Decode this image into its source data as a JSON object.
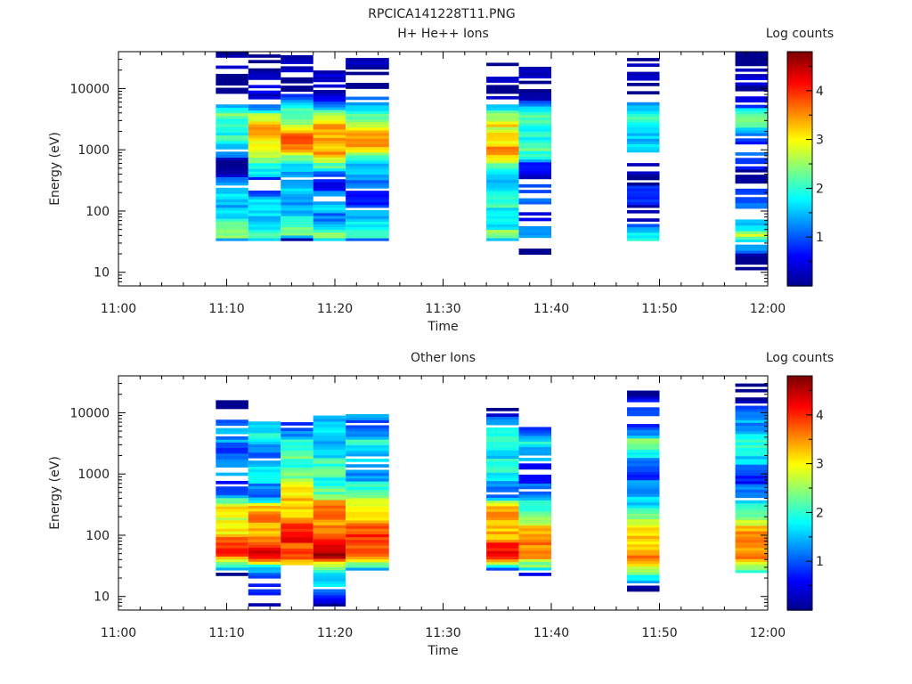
{
  "title": "RPCICA141228T11.PNG",
  "colormap": [
    "#00008f",
    "#0000ff",
    "#0080ff",
    "#00ffff",
    "#80ff80",
    "#ffff00",
    "#ff8000",
    "#ff0000",
    "#800000"
  ],
  "chart_data": [
    {
      "type": "heatmap",
      "title": "H+ He++ Ions",
      "xlabel": "Time",
      "ylabel": "Energy (eV)",
      "xlim": [
        "11:00",
        "12:00"
      ],
      "xticks": [
        "11:00",
        "11:10",
        "11:20",
        "11:30",
        "11:40",
        "11:50",
        "12:00"
      ],
      "ylim": [
        6,
        40000
      ],
      "yscale": "log",
      "yticks": [
        "10",
        "100",
        "1000",
        "10000"
      ],
      "colorbar": {
        "label": "Log counts",
        "range": [
          0,
          4.8
        ],
        "ticks": [
          "1",
          "2",
          "3",
          "4"
        ]
      },
      "columns": [
        {
          "start": "11:09",
          "end": "11:12",
          "emin": 33,
          "emax": 40000,
          "profile": [
            [
              33,
              1.2
            ],
            [
              40,
              2.6
            ],
            [
              60,
              2.3
            ],
            [
              150,
              1.8
            ],
            [
              300,
              1.2
            ],
            [
              600,
              0.4
            ],
            [
              1000,
              1.4
            ],
            [
              2000,
              2.3
            ],
            [
              3500,
              2.6
            ],
            [
              6000,
              1.2
            ],
            [
              10000,
              0.3
            ],
            [
              40000,
              0.1
            ]
          ]
        },
        {
          "start": "11:12",
          "end": "11:15",
          "emin": 33,
          "emax": 40000,
          "profile": [
            [
              33,
              1.4
            ],
            [
              40,
              2.8
            ],
            [
              60,
              2.0
            ],
            [
              150,
              1.6
            ],
            [
              300,
              1.3
            ],
            [
              600,
              2.0
            ],
            [
              1000,
              3.5
            ],
            [
              2000,
              3.6
            ],
            [
              3500,
              2.8
            ],
            [
              6000,
              1.3
            ],
            [
              10000,
              0.3
            ],
            [
              40000,
              0.1
            ]
          ]
        },
        {
          "start": "11:15",
          "end": "11:18",
          "emin": 33,
          "emax": 35000,
          "profile": [
            [
              33,
              0.2
            ],
            [
              40,
              2.6
            ],
            [
              60,
              2.0
            ],
            [
              150,
              1.8
            ],
            [
              300,
              1.3
            ],
            [
              600,
              2.3
            ],
            [
              1000,
              3.7
            ],
            [
              2000,
              3.8
            ],
            [
              3500,
              2.6
            ],
            [
              6000,
              1.4
            ],
            [
              10000,
              0.3
            ],
            [
              35000,
              0.1
            ]
          ]
        },
        {
          "start": "11:18",
          "end": "11:21",
          "emin": 33,
          "emax": 30000,
          "profile": [
            [
              33,
              1.4
            ],
            [
              40,
              2.8
            ],
            [
              60,
              1.8
            ],
            [
              150,
              1.5
            ],
            [
              300,
              1.1
            ],
            [
              600,
              2.3
            ],
            [
              1000,
              3.8
            ],
            [
              2000,
              3.9
            ],
            [
              3500,
              2.9
            ],
            [
              6000,
              1.4
            ],
            [
              10000,
              0.3
            ],
            [
              30000,
              0.1
            ]
          ]
        },
        {
          "start": "11:21",
          "end": "11:25",
          "emin": 33,
          "emax": 35000,
          "profile": [
            [
              33,
              1.3
            ],
            [
              40,
              2.7
            ],
            [
              60,
              1.7
            ],
            [
              150,
              1.3
            ],
            [
              300,
              1.0
            ],
            [
              600,
              2.0
            ],
            [
              1000,
              3.4
            ],
            [
              2000,
              3.5
            ],
            [
              3500,
              2.8
            ],
            [
              6000,
              1.3
            ],
            [
              10000,
              0.3
            ],
            [
              35000,
              0.1
            ]
          ]
        },
        {
          "start": "11:34",
          "end": "11:37",
          "emin": 33,
          "emax": 40000,
          "profile": [
            [
              33,
              1.4
            ],
            [
              40,
              2.7
            ],
            [
              60,
              2.2
            ],
            [
              150,
              2.0
            ],
            [
              300,
              1.8
            ],
            [
              600,
              2.4
            ],
            [
              1000,
              3.6
            ],
            [
              2000,
              3.5
            ],
            [
              3500,
              2.6
            ],
            [
              6000,
              1.2
            ],
            [
              10000,
              0.3
            ],
            [
              40000,
              0.1
            ]
          ]
        },
        {
          "start": "11:37",
          "end": "11:40",
          "emin": 16,
          "emax": 28000,
          "profile": [
            [
              16,
              0.1
            ],
            [
              33,
              0.6
            ],
            [
              40,
              1.4
            ],
            [
              60,
              1.0
            ],
            [
              150,
              1.0
            ],
            [
              300,
              0.7
            ],
            [
              600,
              1.3
            ],
            [
              1000,
              2.2
            ],
            [
              2000,
              2.4
            ],
            [
              3500,
              2.2
            ],
            [
              6000,
              1.0
            ],
            [
              10000,
              0.3
            ],
            [
              28000,
              0.1
            ]
          ]
        },
        {
          "start": "11:47",
          "end": "11:50",
          "emin": 33,
          "emax": 35000,
          "profile": [
            [
              33,
              2.3
            ],
            [
              40,
              1.8
            ],
            [
              60,
              1.0
            ],
            [
              150,
              0.7
            ],
            [
              300,
              0.6
            ],
            [
              600,
              0.9
            ],
            [
              1000,
              1.6
            ],
            [
              2000,
              2.2
            ],
            [
              3500,
              2.3
            ],
            [
              6000,
              1.2
            ],
            [
              10000,
              0.3
            ],
            [
              35000,
              0.1
            ]
          ]
        },
        {
          "start": "11:57",
          "end": "12:00",
          "emin": 11,
          "emax": 40000,
          "profile": [
            [
              11,
              0.1
            ],
            [
              33,
              1.6
            ],
            [
              40,
              2.9
            ],
            [
              60,
              2.0
            ],
            [
              150,
              0.8
            ],
            [
              300,
              0.6
            ],
            [
              600,
              0.7
            ],
            [
              1000,
              1.0
            ],
            [
              2000,
              1.8
            ],
            [
              3500,
              2.4
            ],
            [
              6000,
              1.2
            ],
            [
              10000,
              0.3
            ],
            [
              40000,
              0.1
            ]
          ]
        }
      ]
    },
    {
      "type": "heatmap",
      "title": "Other Ions",
      "xlabel": "Time",
      "ylabel": "Energy (eV)",
      "xlim": [
        "11:00",
        "12:00"
      ],
      "xticks": [
        "11:00",
        "11:10",
        "11:20",
        "11:30",
        "11:40",
        "11:50",
        "12:00"
      ],
      "ylim": [
        6,
        40000
      ],
      "yscale": "log",
      "yticks": [
        "10",
        "100",
        "1000",
        "10000"
      ],
      "colorbar": {
        "label": "Log counts",
        "range": [
          0,
          4.8
        ],
        "ticks": [
          "1",
          "2",
          "3",
          "4"
        ]
      },
      "columns": [
        {
          "start": "11:09",
          "end": "11:12",
          "emin": 22,
          "emax": 16000,
          "profile": [
            [
              22,
              0.2
            ],
            [
              30,
              2.2
            ],
            [
              45,
              4.2
            ],
            [
              70,
              3.8
            ],
            [
              150,
              3.5
            ],
            [
              300,
              3.0
            ],
            [
              450,
              1.5
            ],
            [
              2000,
              1.0
            ],
            [
              3500,
              1.8
            ],
            [
              6000,
              1.2
            ],
            [
              16000,
              0.2
            ]
          ]
        },
        {
          "start": "11:12",
          "end": "11:15",
          "emin": 7,
          "emax": 8000,
          "profile": [
            [
              7,
              0.1
            ],
            [
              30,
              2.0
            ],
            [
              45,
              4.4
            ],
            [
              70,
              4.1
            ],
            [
              150,
              3.8
            ],
            [
              300,
              3.2
            ],
            [
              450,
              1.5
            ],
            [
              1000,
              1.9
            ],
            [
              2000,
              1.5
            ],
            [
              3500,
              2.0
            ],
            [
              8000,
              1.4
            ]
          ]
        },
        {
          "start": "11:15",
          "end": "11:18",
          "emin": 33,
          "emax": 7000,
          "profile": [
            [
              33,
              3.0
            ],
            [
              45,
              4.5
            ],
            [
              70,
              4.3
            ],
            [
              150,
              4.0
            ],
            [
              300,
              3.6
            ],
            [
              500,
              3.1
            ],
            [
              1000,
              2.8
            ],
            [
              2000,
              2.3
            ],
            [
              3500,
              2.0
            ],
            [
              7000,
              1.4
            ]
          ]
        },
        {
          "start": "11:18",
          "end": "11:21",
          "emin": 7,
          "emax": 9000,
          "profile": [
            [
              7,
              0.1
            ],
            [
              33,
              3.0
            ],
            [
              45,
              4.6
            ],
            [
              70,
              4.4
            ],
            [
              150,
              4.0
            ],
            [
              300,
              3.6
            ],
            [
              500,
              2.8
            ],
            [
              1000,
              2.2
            ],
            [
              2000,
              2.0
            ],
            [
              3500,
              2.0
            ],
            [
              9000,
              1.4
            ]
          ]
        },
        {
          "start": "11:21",
          "end": "11:25",
          "emin": 27,
          "emax": 9500,
          "profile": [
            [
              27,
              1.0
            ],
            [
              33,
              2.8
            ],
            [
              45,
              4.3
            ],
            [
              70,
              4.1
            ],
            [
              150,
              3.8
            ],
            [
              300,
              3.3
            ],
            [
              500,
              2.0
            ],
            [
              1000,
              1.8
            ],
            [
              2000,
              1.4
            ],
            [
              3500,
              2.0
            ],
            [
              9500,
              1.2
            ]
          ]
        },
        {
          "start": "11:34",
          "end": "11:37",
          "emin": 27,
          "emax": 12000,
          "profile": [
            [
              27,
              1.0
            ],
            [
              33,
              2.8
            ],
            [
              45,
              4.3
            ],
            [
              70,
              4.0
            ],
            [
              150,
              3.7
            ],
            [
              300,
              3.2
            ],
            [
              450,
              1.5
            ],
            [
              1000,
              1.8
            ],
            [
              2000,
              2.2
            ],
            [
              3500,
              2.4
            ],
            [
              12000,
              0.4
            ]
          ]
        },
        {
          "start": "11:37",
          "end": "11:40",
          "emin": 22,
          "emax": 6500,
          "profile": [
            [
              22,
              0.2
            ],
            [
              30,
              2.0
            ],
            [
              45,
              4.2
            ],
            [
              70,
              3.6
            ],
            [
              150,
              3.2
            ],
            [
              300,
              2.6
            ],
            [
              450,
              1.0
            ],
            [
              2500,
              1.4
            ],
            [
              3500,
              2.0
            ],
            [
              6500,
              1.3
            ]
          ]
        },
        {
          "start": "11:47",
          "end": "11:50",
          "emin": 11,
          "emax": 23000,
          "profile": [
            [
              11,
              0.1
            ],
            [
              30,
              2.8
            ],
            [
              45,
              4.2
            ],
            [
              70,
              3.5
            ],
            [
              150,
              3.0
            ],
            [
              300,
              2.4
            ],
            [
              550,
              1.0
            ],
            [
              2500,
              2.0
            ],
            [
              3500,
              2.4
            ],
            [
              7000,
              1.2
            ],
            [
              23000,
              0.2
            ]
          ]
        },
        {
          "start": "11:57",
          "end": "12:00",
          "emin": 18,
          "emax": 30000,
          "profile": [
            [
              18,
              0.2
            ],
            [
              30,
              2.6
            ],
            [
              45,
              4.3
            ],
            [
              70,
              3.7
            ],
            [
              150,
              3.3
            ],
            [
              300,
              2.4
            ],
            [
              400,
              1.0
            ],
            [
              2500,
              1.8
            ],
            [
              3500,
              2.4
            ],
            [
              8000,
              1.3
            ],
            [
              30000,
              0.2
            ]
          ]
        }
      ]
    }
  ]
}
